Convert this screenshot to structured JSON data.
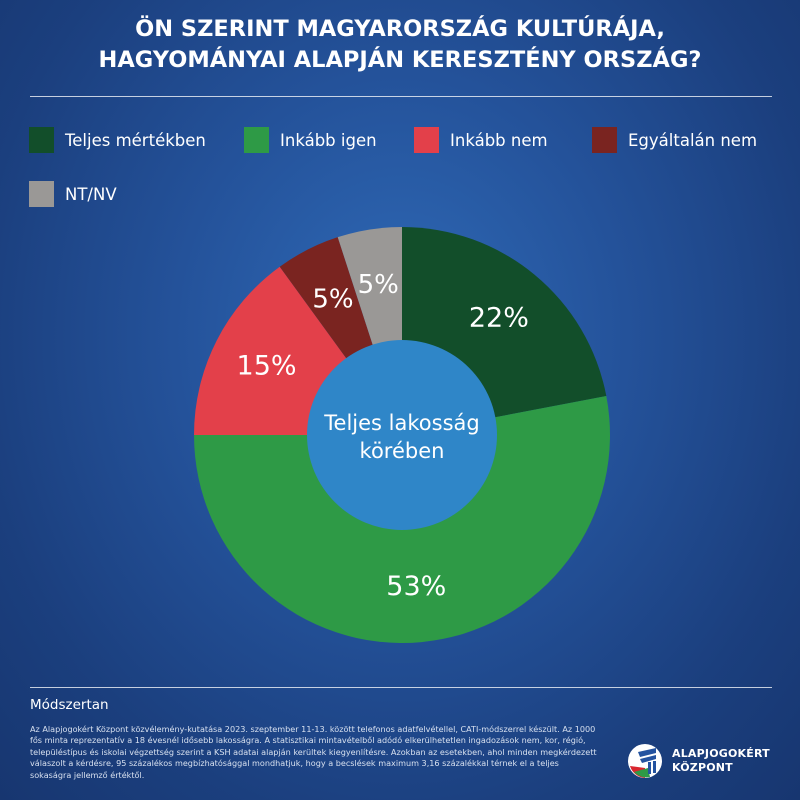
{
  "title": {
    "line1": "ÖN SZERINT MAGYARORSZÁG KULTÚRÁJA,",
    "line2": "HAGYOMÁNYAI ALAPJÁN KERESZTÉNY ORSZÁG?"
  },
  "chart_data": {
    "type": "pie",
    "variant": "donut",
    "title": "ÖN SZERINT MAGYARORSZÁG KULTÚRÁJA, HAGYOMÁNYAI ALAPJÁN KERESZTÉNY ORSZÁG?",
    "center_label": [
      "Teljes lakosság",
      "körében"
    ],
    "legend_position": "top",
    "unit": "%",
    "slices": [
      {
        "label": "Teljes mértékben",
        "value": 22,
        "color": "#124e2a"
      },
      {
        "label": "Inkább igen",
        "value": 53,
        "color": "#2e9a46"
      },
      {
        "label": "Inkább nem",
        "value": 15,
        "color": "#e3404a"
      },
      {
        "label": "Egyáltalán nem",
        "value": 5,
        "color": "#7a2420"
      },
      {
        "label": "NT/NV",
        "value": 5,
        "color": "#9a9896"
      }
    ]
  },
  "methodology": {
    "heading": "Módszertan",
    "text": "Az Alapjogokért Központ közvélemény-kutatása 2023. szeptember 11-13. között telefonos adatfelvétellel, CATI-módszerrel készült. Az 1000 fős minta reprezentatív a 18 évesnél idősebb lakosságra. A statisztikai mintavételből adódó elkerülhetetlen ingadozások nem, kor, régió, településtípus és iskolai végzettség szerint a KSH adatai alapján kerültek kiegyenlítésre. Azokban az esetekben, ahol minden megkérdezett válaszolt a kérdésre, 95 százalékos megbízhatósággal mondhatjuk, hogy a becslések maximum 3,16 százalékkal térnek el a teljes sokaságra jellemző értéktől."
  },
  "logo": {
    "line1": "ALAPJOGOKÉRT",
    "line2": "KÖZPONT"
  },
  "colors": {
    "background": "#24529a",
    "center": "#2f86c8"
  }
}
